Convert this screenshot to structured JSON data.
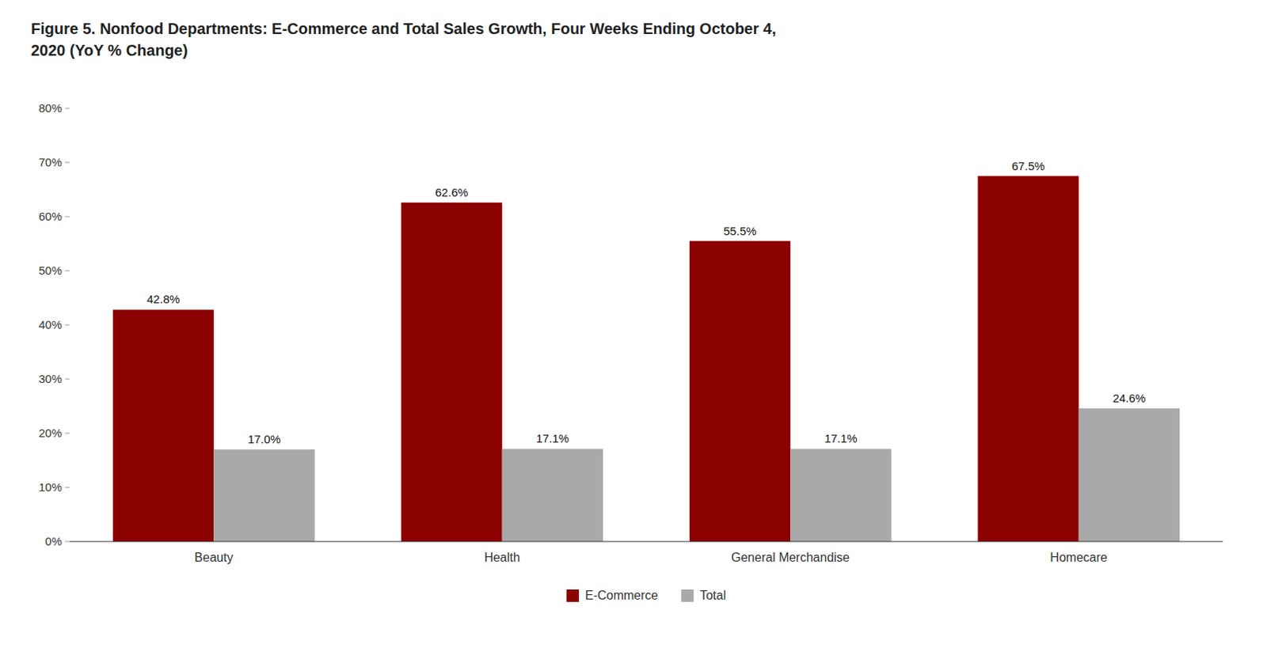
{
  "chart_data": {
    "type": "bar",
    "title": "Figure 5. Nonfood Departments: E-Commerce and Total Sales Growth, Four Weeks Ending October 4,",
    "subtitle": "2020 (YoY % Change)",
    "categories": [
      "Beauty",
      "Health",
      "General Merchandise",
      "Homecare"
    ],
    "series": [
      {
        "name": "E-Commerce",
        "color": "#8B0000",
        "values": [
          0.428,
          0.626,
          0.555,
          0.675
        ],
        "value_labels": [
          "42.8%",
          "62.6%",
          "55.5%",
          "67.5%"
        ]
      },
      {
        "name": "Total",
        "color": "#A9A9A9",
        "values": [
          0.17,
          0.171,
          0.171,
          0.246
        ],
        "value_labels": [
          "17.0%",
          "17.1%",
          "17.1%",
          "24.6%"
        ]
      }
    ],
    "ylim": [
      0,
      0.8
    ],
    "yticks": [
      {
        "value": 0,
        "label": "0%"
      },
      {
        "value": 0.1,
        "label": "10%"
      },
      {
        "value": 0.2,
        "label": "20%"
      },
      {
        "value": 0.3,
        "label": "30%"
      },
      {
        "value": 0.4,
        "label": "40%"
      },
      {
        "value": 0.5,
        "label": "50%"
      },
      {
        "value": 0.6,
        "label": "60%"
      },
      {
        "value": 0.7,
        "label": "70%"
      },
      {
        "value": 0.8,
        "label": "80%"
      }
    ],
    "grid": false,
    "legend": "bottom",
    "data_labels": true
  }
}
